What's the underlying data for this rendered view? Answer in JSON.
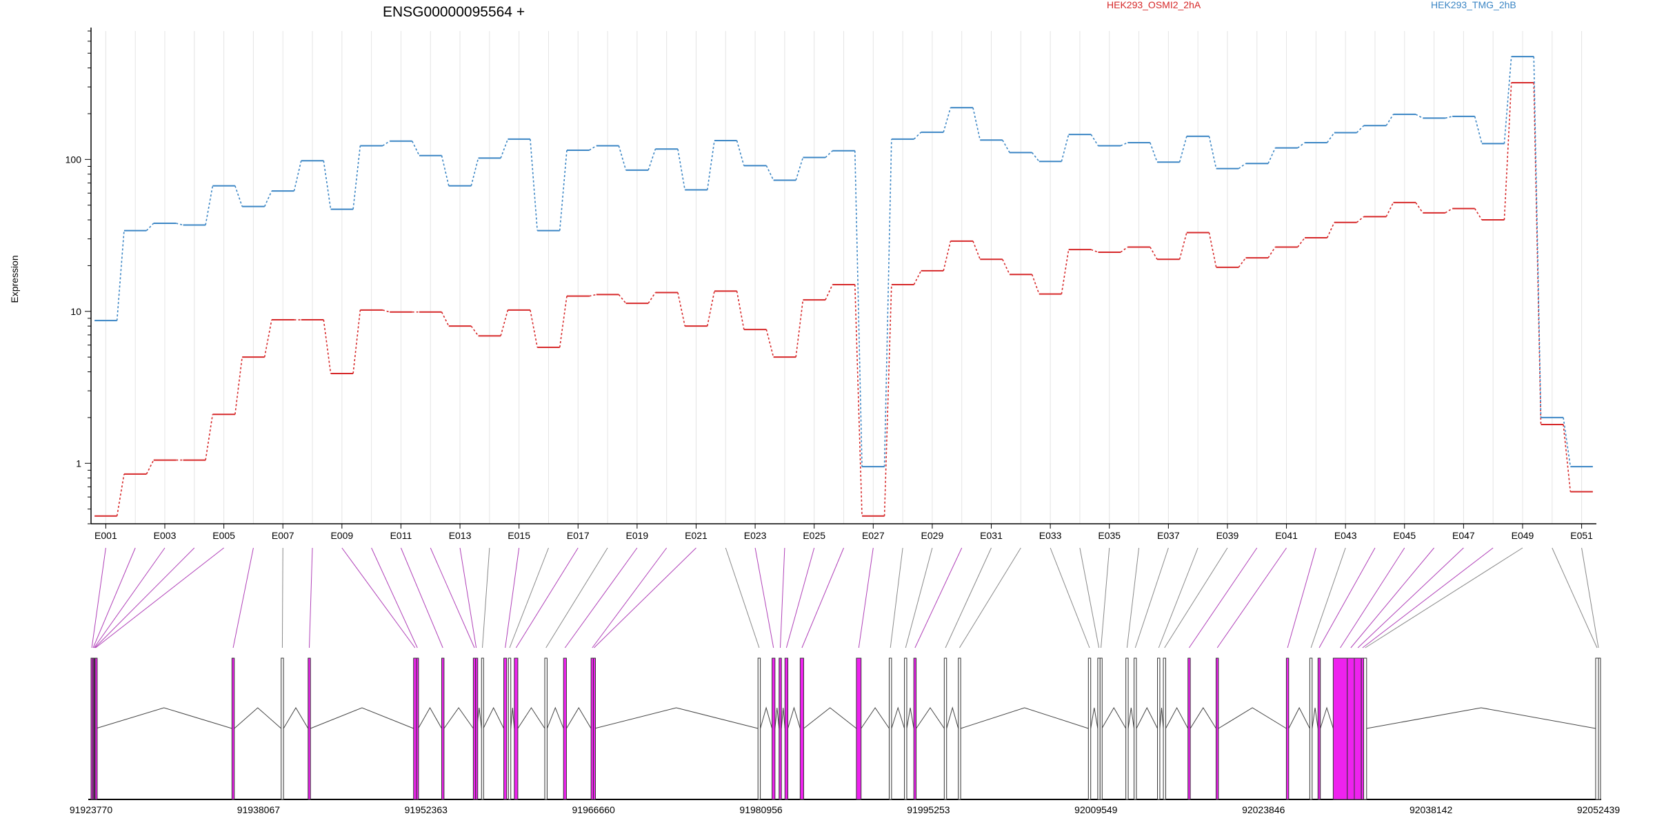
{
  "title": "ENSG00000095564 +",
  "legend": [
    {
      "name": "HEK293_OSMI2_2hA",
      "color": "#d62728"
    },
    {
      "name": "HEK293_TMG_2hB",
      "color": "#3a85c4"
    }
  ],
  "ylabel": "Expression",
  "colors": {
    "exon_highlight": "#ee22ee",
    "exon_plain": "#ffffff",
    "outline": "#000000",
    "connector_highlight": "#b040b8",
    "connector_plain": "#888888",
    "grid": "#e4e4e4"
  },
  "chart_data": {
    "type": "line",
    "title": "ENSG00000095564 +",
    "ylabel": "Expression",
    "yscale": "log",
    "ylim": [
      0.4,
      700
    ],
    "yticks": [
      1,
      10,
      100
    ],
    "ytick_labels": [
      "1",
      "10",
      "100"
    ],
    "categories": [
      "E001",
      "E002",
      "E003",
      "E004",
      "E005",
      "E006",
      "E007",
      "E008",
      "E009",
      "E010",
      "E011",
      "E012",
      "E013",
      "E014",
      "E015",
      "E016",
      "E017",
      "E018",
      "E019",
      "E020",
      "E021",
      "E022",
      "E023",
      "E024",
      "E025",
      "E026",
      "E027",
      "E028",
      "E029",
      "E030",
      "E031",
      "E032",
      "E033",
      "E034",
      "E035",
      "E036",
      "E037",
      "E038",
      "E039",
      "E040",
      "E041",
      "E042",
      "E043",
      "E044",
      "E045",
      "E046",
      "E047",
      "E048",
      "E049",
      "E050",
      "E051"
    ],
    "tick_labels": [
      "E001",
      "E003",
      "E005",
      "E007",
      "E009",
      "E011",
      "E013",
      "E015",
      "E017",
      "E019",
      "E021",
      "E023",
      "E025",
      "E027",
      "E029",
      "E031",
      "E033",
      "E035",
      "E037",
      "E039",
      "E041",
      "E043",
      "E045",
      "E047",
      "E049",
      "E051"
    ],
    "series": [
      {
        "name": "HEK293_OSMI2_2hA",
        "color": "#d62728",
        "values": [
          0.45,
          0.85,
          1.05,
          1.05,
          2.1,
          5.0,
          8.8,
          8.8,
          3.9,
          10.2,
          9.9,
          9.9,
          8.0,
          6.9,
          10.2,
          5.8,
          12.6,
          12.9,
          11.3,
          13.3,
          8.0,
          13.6,
          7.6,
          5.0,
          11.9,
          15.0,
          0.45,
          15.0,
          18.5,
          29.0,
          22.0,
          17.5,
          13.0,
          25.5,
          24.5,
          26.5,
          22.0,
          33.0,
          19.5,
          22.5,
          26.5,
          30.5,
          38.5,
          42.0,
          52.0,
          44.5,
          47.5,
          40.0,
          320.0,
          1.8,
          0.65
        ]
      },
      {
        "name": "HEK293_TMG_2hB",
        "color": "#3a85c4",
        "values": [
          8.7,
          34.0,
          38.0,
          37.0,
          67.0,
          49.0,
          62.0,
          98.0,
          47.0,
          123.0,
          132.0,
          106.0,
          67.0,
          102.0,
          136.0,
          34.0,
          115.0,
          123.0,
          85.0,
          117.0,
          63.0,
          133.0,
          91.0,
          73.0,
          103.0,
          114.0,
          0.95,
          136.0,
          151.0,
          219.0,
          134.0,
          111.0,
          97.0,
          146.0,
          123.0,
          129.0,
          96.0,
          142.0,
          87.0,
          94.0,
          119.0,
          129.0,
          150.0,
          167.0,
          198.0,
          187.0,
          192.0,
          127.0,
          475.0,
          2.0,
          0.95
        ]
      }
    ]
  },
  "gene_model": {
    "coordinate_labels": [
      "91923770",
      "91938067",
      "91952363",
      "91966660",
      "91980956",
      "91995253",
      "92009549",
      "92023846",
      "92038142",
      "92052439"
    ],
    "coord_min": 91923770,
    "coord_max": 92052439,
    "exons": [
      {
        "id": "E001",
        "start": 91923770,
        "end": 91923900,
        "highlight": true
      },
      {
        "id": "E002",
        "start": 91923900,
        "end": 91924000,
        "highlight": true
      },
      {
        "id": "E003",
        "start": 91924000,
        "end": 91924060,
        "highlight": true
      },
      {
        "id": "E004",
        "start": 91924060,
        "end": 91924120,
        "highlight": true
      },
      {
        "id": "E005",
        "start": 91924120,
        "end": 91924190,
        "highlight": true
      },
      {
        "id": "E006",
        "start": 91935800,
        "end": 91936000,
        "highlight": true
      },
      {
        "id": "E007",
        "start": 91940000,
        "end": 91940200,
        "highlight": false
      },
      {
        "id": "E008",
        "start": 91942300,
        "end": 91942500,
        "highlight": true
      },
      {
        "id": "E009",
        "start": 91951300,
        "end": 91951550,
        "highlight": true
      },
      {
        "id": "E010",
        "start": 91951550,
        "end": 91951700,
        "highlight": true
      },
      {
        "id": "E011",
        "start": 91953700,
        "end": 91953900,
        "highlight": true
      },
      {
        "id": "E012",
        "start": 91956400,
        "end": 91956600,
        "highlight": true
      },
      {
        "id": "E013",
        "start": 91956600,
        "end": 91956700,
        "highlight": true
      },
      {
        "id": "E014",
        "start": 91957100,
        "end": 91957250,
        "highlight": false
      },
      {
        "id": "E015",
        "start": 91959000,
        "end": 91959250,
        "highlight": true
      },
      {
        "id": "E016",
        "start": 91959400,
        "end": 91959600,
        "highlight": false
      },
      {
        "id": "E017",
        "start": 91959900,
        "end": 91960200,
        "highlight": true
      },
      {
        "id": "E018",
        "start": 91962500,
        "end": 91962700,
        "highlight": false
      },
      {
        "id": "E019",
        "start": 91964100,
        "end": 91964350,
        "highlight": true
      },
      {
        "id": "E020",
        "start": 91966450,
        "end": 91966650,
        "highlight": true
      },
      {
        "id": "E021",
        "start": 91966650,
        "end": 91966750,
        "highlight": true
      },
      {
        "id": "E022",
        "start": 91980700,
        "end": 91980900,
        "highlight": false
      },
      {
        "id": "E023",
        "start": 91981900,
        "end": 91982150,
        "highlight": true
      },
      {
        "id": "E024",
        "start": 91982500,
        "end": 91982700,
        "highlight": true
      },
      {
        "id": "E025",
        "start": 91983000,
        "end": 91983250,
        "highlight": true
      },
      {
        "id": "E026",
        "start": 91984300,
        "end": 91984600,
        "highlight": true
      },
      {
        "id": "E027",
        "start": 91989100,
        "end": 91989500,
        "highlight": true
      },
      {
        "id": "E028",
        "start": 91991900,
        "end": 91992100,
        "highlight": false
      },
      {
        "id": "E029",
        "start": 91993200,
        "end": 91993400,
        "highlight": false
      },
      {
        "id": "E030",
        "start": 91994000,
        "end": 91994200,
        "highlight": true
      },
      {
        "id": "E031",
        "start": 91996600,
        "end": 91996800,
        "highlight": false
      },
      {
        "id": "E032",
        "start": 91997800,
        "end": 91998000,
        "highlight": false
      },
      {
        "id": "E033",
        "start": 92008900,
        "end": 92009100,
        "highlight": false
      },
      {
        "id": "E034",
        "start": 92009700,
        "end": 92009900,
        "highlight": false
      },
      {
        "id": "E035",
        "start": 92009900,
        "end": 92010050,
        "highlight": false
      },
      {
        "id": "E036",
        "start": 92012100,
        "end": 92012300,
        "highlight": false
      },
      {
        "id": "E037",
        "start": 92012800,
        "end": 92013000,
        "highlight": false
      },
      {
        "id": "E038",
        "start": 92014800,
        "end": 92015000,
        "highlight": false
      },
      {
        "id": "E039",
        "start": 92015300,
        "end": 92015500,
        "highlight": false
      },
      {
        "id": "E040",
        "start": 92017400,
        "end": 92017600,
        "highlight": true
      },
      {
        "id": "E041",
        "start": 92019800,
        "end": 92020000,
        "highlight": true
      },
      {
        "id": "E042",
        "start": 92025800,
        "end": 92026000,
        "highlight": true
      },
      {
        "id": "E043",
        "start": 92027800,
        "end": 92028000,
        "highlight": false
      },
      {
        "id": "E044",
        "start": 92028500,
        "end": 92028700,
        "highlight": true
      },
      {
        "id": "E045",
        "start": 92029800,
        "end": 92031000,
        "highlight": true
      },
      {
        "id": "E046",
        "start": 92031000,
        "end": 92031600,
        "highlight": true
      },
      {
        "id": "E047",
        "start": 92031600,
        "end": 92032200,
        "highlight": true
      },
      {
        "id": "E048",
        "start": 92032200,
        "end": 92032400,
        "highlight": true
      },
      {
        "id": "E049",
        "start": 92032400,
        "end": 92032650,
        "highlight": false
      },
      {
        "id": "E050",
        "start": 92052200,
        "end": 92052439,
        "highlight": false
      },
      {
        "id": "E051",
        "start": 92052439,
        "end": 92052439,
        "highlight": false
      }
    ]
  }
}
